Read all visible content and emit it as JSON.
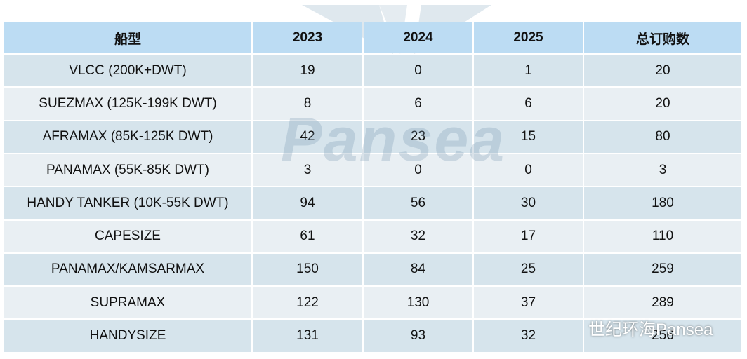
{
  "table": {
    "header": [
      "船型",
      "2023",
      "2024",
      "2025",
      "总订购数"
    ],
    "rows": [
      [
        "VLCC (200K+DWT)",
        "19",
        "0",
        "1",
        "20"
      ],
      [
        "SUEZMAX (125K-199K DWT)",
        "8",
        "6",
        "6",
        "20"
      ],
      [
        "AFRAMAX (85K-125K DWT)",
        "42",
        "23",
        "15",
        "80"
      ],
      [
        "PANAMAX (55K-85K DWT)",
        "3",
        "0",
        "0",
        "3"
      ],
      [
        "HANDY TANKER (10K-55K DWT)",
        "94",
        "56",
        "30",
        "180"
      ],
      [
        "CAPESIZE",
        "61",
        "32",
        "17",
        "110"
      ],
      [
        "PANAMAX/KAMSARMAX",
        "150",
        "84",
        "25",
        "259"
      ],
      [
        "SUPRAMAX",
        "122",
        "130",
        "37",
        "289"
      ],
      [
        "HANDYSIZE",
        "131",
        "93",
        "32",
        "256"
      ]
    ]
  },
  "watermark": {
    "logo_text": "Pansea",
    "account": "世纪环海Pansea"
  }
}
